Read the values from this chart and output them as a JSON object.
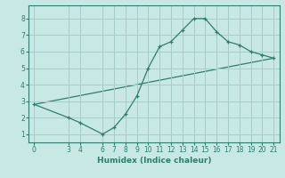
{
  "xlabel": "Humidex (Indice chaleur)",
  "line1_x": [
    0,
    3,
    4,
    6,
    7,
    8,
    9,
    10,
    11,
    12,
    13,
    14,
    15,
    16,
    17,
    18,
    19,
    20,
    21
  ],
  "line1_y": [
    2.8,
    2.0,
    1.7,
    1.0,
    1.4,
    2.2,
    3.3,
    5.0,
    6.3,
    6.6,
    7.3,
    8.0,
    8.0,
    7.2,
    6.6,
    6.4,
    6.0,
    5.8,
    5.6
  ],
  "line2_x": [
    0,
    21
  ],
  "line2_y": [
    2.8,
    5.6
  ],
  "line_color": "#2e7d6e",
  "bg_color": "#c8e8e5",
  "grid_color": "#a8ccc9",
  "xticks": [
    0,
    3,
    4,
    6,
    7,
    8,
    9,
    10,
    11,
    12,
    13,
    14,
    15,
    16,
    17,
    18,
    19,
    20,
    21
  ],
  "yticks": [
    1,
    2,
    3,
    4,
    5,
    6,
    7,
    8
  ],
  "xlim": [
    -0.5,
    21.5
  ],
  "ylim": [
    0.5,
    8.8
  ]
}
